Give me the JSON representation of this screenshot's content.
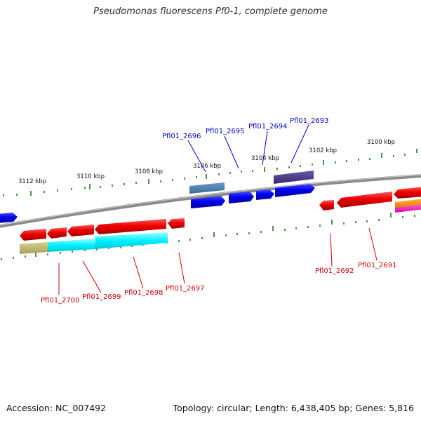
{
  "title": "Pseudomonas fluorescens Pf0-1, complete genome",
  "footer": {
    "accession": "Accession: NC_007492",
    "topology": "Topology: circular; Length: 6,438,405 bp; Genes: 5,816"
  },
  "colors": {
    "plus_label": "#0000cc",
    "minus_label": "#cc0000",
    "backbone": "#888888",
    "tick": "#1a7a1a"
  },
  "kbp_ticks": [
    "3112 kbp",
    "3110 kbp",
    "3108 kbp",
    "3106 kbp",
    "3104 kbp",
    "3102 kbp",
    "3100 kbp"
  ],
  "plus_labels": [
    "Pfl01_2696",
    "Pfl01_2695",
    "Pfl01_2694",
    "Pfl01_2693"
  ],
  "minus_labels": [
    "Pfl01_2700",
    "Pfl01_2699",
    "Pfl01_2698",
    "Pfl01_2697",
    "Pfl01_2692",
    "Pfl01_2691"
  ]
}
